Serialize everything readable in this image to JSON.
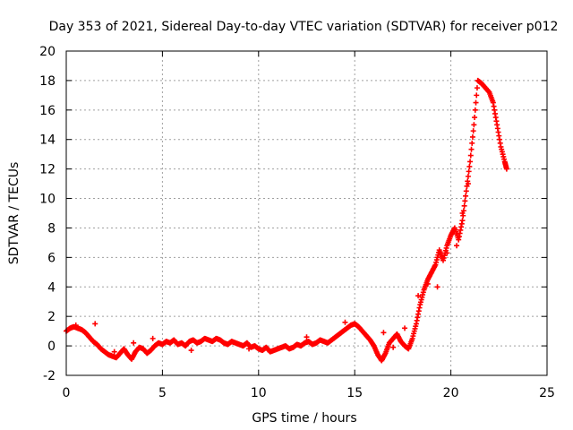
{
  "chart_data": {
    "type": "scatter",
    "title": "Day 353 of 2021, Sidereal Day-to-day VTEC variation (SDTVAR) for receiver p012",
    "xlabel": "GPS time / hours",
    "ylabel": "SDTVAR / TECUs",
    "xlim": [
      0,
      25
    ],
    "ylim": [
      -2,
      20
    ],
    "xticks": [
      0,
      5,
      10,
      15,
      20,
      25
    ],
    "yticks": [
      -2,
      0,
      2,
      4,
      6,
      8,
      10,
      12,
      14,
      16,
      18,
      20
    ],
    "grid": true,
    "marker": "+",
    "marker_color": "#ff0000",
    "series": [
      {
        "name": "SDTVAR",
        "x": [
          0.0,
          0.2,
          0.4,
          0.6,
          0.8,
          1.0,
          1.2,
          1.4,
          1.6,
          1.8,
          2.0,
          2.2,
          2.4,
          2.6,
          2.8,
          3.0,
          3.2,
          3.4,
          3.6,
          3.8,
          4.0,
          4.2,
          4.4,
          4.6,
          4.8,
          5.0,
          5.2,
          5.4,
          5.6,
          5.8,
          6.0,
          6.2,
          6.4,
          6.6,
          6.8,
          7.0,
          7.2,
          7.4,
          7.6,
          7.8,
          8.0,
          8.2,
          8.4,
          8.6,
          8.8,
          9.0,
          9.2,
          9.4,
          9.6,
          9.8,
          10.0,
          10.2,
          10.4,
          10.6,
          10.8,
          11.0,
          11.2,
          11.4,
          11.6,
          11.8,
          12.0,
          12.2,
          12.4,
          12.6,
          12.8,
          13.0,
          13.2,
          13.4,
          13.6,
          13.8,
          14.0,
          14.2,
          14.4,
          14.6,
          14.8,
          15.0,
          15.2,
          15.4,
          15.6,
          15.8,
          16.0,
          16.2,
          16.4,
          16.6,
          16.8,
          17.0,
          17.2,
          17.4,
          17.6,
          17.8,
          18.0,
          18.2,
          18.4,
          18.6,
          18.8,
          19.0,
          19.2,
          19.4,
          19.6,
          19.8,
          20.0,
          20.2,
          20.4,
          20.6,
          20.8,
          21.0,
          21.2,
          21.4,
          21.6,
          21.8,
          22.0,
          22.2,
          22.4,
          22.6,
          22.8,
          22.9
        ],
        "y": [
          1.0,
          1.2,
          1.3,
          1.2,
          1.1,
          0.9,
          0.6,
          0.3,
          0.1,
          -0.2,
          -0.4,
          -0.6,
          -0.7,
          -0.8,
          -0.5,
          -0.2,
          -0.6,
          -0.9,
          -0.4,
          -0.1,
          -0.2,
          -0.5,
          -0.3,
          0.0,
          0.2,
          0.1,
          0.3,
          0.2,
          0.4,
          0.1,
          0.2,
          0.0,
          0.3,
          0.4,
          0.2,
          0.3,
          0.5,
          0.4,
          0.3,
          0.5,
          0.4,
          0.2,
          0.1,
          0.3,
          0.2,
          0.1,
          0.0,
          0.2,
          -0.1,
          0.0,
          -0.2,
          -0.3,
          -0.1,
          -0.4,
          -0.3,
          -0.2,
          -0.1,
          0.0,
          -0.2,
          -0.1,
          0.1,
          0.0,
          0.2,
          0.3,
          0.1,
          0.2,
          0.4,
          0.3,
          0.2,
          0.4,
          0.6,
          0.8,
          1.0,
          1.2,
          1.4,
          1.5,
          1.3,
          1.0,
          0.7,
          0.4,
          0.0,
          -0.6,
          -1.0,
          -0.5,
          0.2,
          0.5,
          0.8,
          0.3,
          0.0,
          -0.2,
          0.5,
          1.5,
          2.8,
          3.8,
          4.5,
          5.0,
          5.5,
          6.5,
          5.8,
          6.8,
          7.5,
          8.0,
          7.2,
          8.5,
          10.5,
          12.5,
          15.0,
          18.0,
          17.8,
          17.5,
          17.2,
          16.5,
          15.0,
          13.5,
          12.5,
          12.0
        ],
        "extra_x": [
          0.5,
          1.5,
          2.5,
          3.5,
          4.5,
          6.5,
          9.5,
          12.5,
          14.5,
          16.5,
          17.0,
          17.6,
          18.3,
          18.8,
          19.3,
          19.8,
          20.3,
          20.6,
          20.9
        ],
        "extra_y": [
          1.4,
          1.5,
          -0.4,
          0.2,
          0.5,
          -0.3,
          -0.2,
          0.6,
          1.6,
          0.9,
          -0.1,
          1.2,
          3.4,
          4.2,
          4.0,
          6.3,
          6.8,
          9.0,
          11.0
        ]
      }
    ]
  }
}
